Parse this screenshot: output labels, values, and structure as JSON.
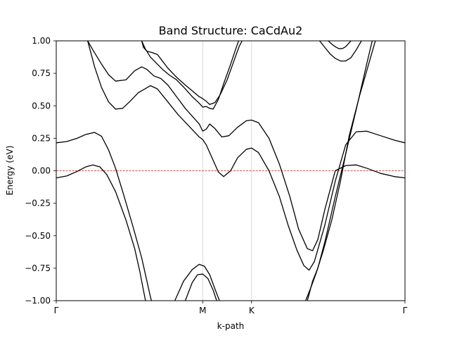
{
  "chart_data": {
    "type": "line",
    "title": "Band Structure: CaCdAu2",
    "xlabel": "k-path",
    "ylabel": "Energy (eV)",
    "xlim": [
      0,
      1
    ],
    "ylim": [
      -1.0,
      1.0
    ],
    "x_ticks": [
      {
        "pos": 0.0,
        "label": "Γ"
      },
      {
        "pos": 0.42,
        "label": "M"
      },
      {
        "pos": 0.56,
        "label": "K"
      },
      {
        "pos": 1.0,
        "label": "Γ"
      }
    ],
    "y_ticks": [
      -1.0,
      -0.75,
      -0.5,
      -0.25,
      0.0,
      0.25,
      0.5,
      0.75,
      1.0
    ],
    "y_tick_labels": [
      "−1.00",
      "−0.75",
      "−0.50",
      "−0.25",
      "0.00",
      "0.25",
      "0.50",
      "0.75",
      "1.00"
    ],
    "vertical_lines_at": [
      0.42,
      0.56
    ],
    "fermi_level": {
      "y": 0.0,
      "color": "#ff0000",
      "style": "dashed"
    },
    "grid": false,
    "line_color": "#000000",
    "series": [
      {
        "points": [
          [
            0.0,
            -0.055
          ],
          [
            0.03,
            -0.04
          ],
          [
            0.06,
            -0.005
          ],
          [
            0.085,
            0.03
          ],
          [
            0.105,
            0.045
          ],
          [
            0.125,
            0.03
          ],
          [
            0.145,
            -0.03
          ],
          [
            0.17,
            -0.16
          ],
          [
            0.2,
            -0.38
          ],
          [
            0.225,
            -0.6
          ],
          [
            0.24,
            -0.78
          ],
          [
            0.25,
            -0.92
          ],
          [
            0.256,
            -1.0
          ]
        ]
      },
      {
        "points": [
          [
            0.0,
            0.215
          ],
          [
            0.03,
            0.225
          ],
          [
            0.06,
            0.25
          ],
          [
            0.085,
            0.28
          ],
          [
            0.11,
            0.295
          ],
          [
            0.13,
            0.265
          ],
          [
            0.15,
            0.16
          ],
          [
            0.17,
            0.02
          ],
          [
            0.195,
            -0.2
          ],
          [
            0.22,
            -0.43
          ],
          [
            0.245,
            -0.67
          ],
          [
            0.26,
            -0.85
          ],
          [
            0.27,
            -0.97
          ],
          [
            0.273,
            -1.0
          ]
        ]
      },
      {
        "points": [
          [
            0.09,
            1.0
          ],
          [
            0.11,
            0.8
          ],
          [
            0.13,
            0.64
          ],
          [
            0.15,
            0.53
          ],
          [
            0.17,
            0.475
          ],
          [
            0.19,
            0.48
          ],
          [
            0.21,
            0.53
          ],
          [
            0.235,
            0.6
          ],
          [
            0.27,
            0.655
          ],
          [
            0.29,
            0.63
          ],
          [
            0.32,
            0.53
          ],
          [
            0.35,
            0.43
          ],
          [
            0.38,
            0.345
          ],
          [
            0.41,
            0.26
          ],
          [
            0.42,
            0.24
          ],
          [
            0.43,
            0.2
          ],
          [
            0.45,
            0.08
          ],
          [
            0.465,
            -0.01
          ],
          [
            0.48,
            -0.045
          ],
          [
            0.5,
            0.0
          ],
          [
            0.52,
            0.1
          ],
          [
            0.545,
            0.165
          ],
          [
            0.56,
            0.175
          ],
          [
            0.58,
            0.14
          ],
          [
            0.61,
            0.0
          ],
          [
            0.64,
            -0.2
          ],
          [
            0.665,
            -0.42
          ],
          [
            0.69,
            -0.61
          ],
          [
            0.71,
            -0.73
          ],
          [
            0.725,
            -0.765
          ],
          [
            0.74,
            -0.7
          ],
          [
            0.77,
            -0.42
          ],
          [
            0.8,
            -0.08
          ],
          [
            0.83,
            0.2
          ],
          [
            0.86,
            0.3
          ],
          [
            0.89,
            0.305
          ],
          [
            0.93,
            0.27
          ],
          [
            0.97,
            0.235
          ],
          [
            1.0,
            0.215
          ]
        ]
      },
      {
        "points": [
          [
            0.09,
            1.0
          ],
          [
            0.105,
            0.93
          ],
          [
            0.13,
            0.82
          ],
          [
            0.15,
            0.74
          ],
          [
            0.17,
            0.69
          ],
          [
            0.2,
            0.7
          ],
          [
            0.225,
            0.77
          ],
          [
            0.245,
            0.8
          ],
          [
            0.26,
            0.78
          ],
          [
            0.28,
            0.73
          ],
          [
            0.3,
            0.71
          ],
          [
            0.32,
            0.66
          ],
          [
            0.345,
            0.57
          ],
          [
            0.37,
            0.48
          ],
          [
            0.39,
            0.42
          ],
          [
            0.41,
            0.36
          ],
          [
            0.42,
            0.305
          ],
          [
            0.43,
            0.32
          ],
          [
            0.44,
            0.36
          ],
          [
            0.455,
            0.325
          ],
          [
            0.475,
            0.26
          ],
          [
            0.495,
            0.27
          ],
          [
            0.52,
            0.335
          ],
          [
            0.545,
            0.385
          ],
          [
            0.56,
            0.39
          ],
          [
            0.58,
            0.37
          ],
          [
            0.61,
            0.25
          ],
          [
            0.64,
            0.05
          ],
          [
            0.67,
            -0.2
          ],
          [
            0.695,
            -0.45
          ],
          [
            0.72,
            -0.6
          ],
          [
            0.735,
            -0.615
          ],
          [
            0.75,
            -0.53
          ],
          [
            0.77,
            -0.3
          ],
          [
            0.8,
            0.0
          ],
          [
            0.83,
            0.04
          ],
          [
            0.86,
            0.045
          ],
          [
            0.89,
            0.02
          ],
          [
            0.93,
            -0.02
          ],
          [
            0.97,
            -0.045
          ],
          [
            1.0,
            -0.055
          ]
        ]
      },
      {
        "points": [
          [
            0.245,
            1.0
          ],
          [
            0.25,
            0.95
          ],
          [
            0.26,
            0.92
          ],
          [
            0.275,
            0.91
          ],
          [
            0.29,
            0.895
          ],
          [
            0.3,
            0.86
          ],
          [
            0.32,
            0.79
          ],
          [
            0.345,
            0.72
          ],
          [
            0.37,
            0.66
          ],
          [
            0.39,
            0.615
          ],
          [
            0.41,
            0.57
          ],
          [
            0.42,
            0.555
          ],
          [
            0.43,
            0.535
          ],
          [
            0.44,
            0.51
          ],
          [
            0.455,
            0.525
          ],
          [
            0.47,
            0.585
          ],
          [
            0.49,
            0.7
          ],
          [
            0.51,
            0.85
          ],
          [
            0.525,
            0.96
          ],
          [
            0.533,
            1.0
          ]
        ]
      },
      {
        "points": [
          [
            0.245,
            1.0
          ],
          [
            0.255,
            0.94
          ],
          [
            0.27,
            0.875
          ],
          [
            0.29,
            0.82
          ],
          [
            0.305,
            0.78
          ],
          [
            0.325,
            0.735
          ],
          [
            0.345,
            0.7
          ],
          [
            0.365,
            0.645
          ],
          [
            0.39,
            0.57
          ],
          [
            0.41,
            0.52
          ],
          [
            0.42,
            0.49
          ],
          [
            0.43,
            0.495
          ],
          [
            0.44,
            0.48
          ],
          [
            0.45,
            0.475
          ],
          [
            0.465,
            0.55
          ],
          [
            0.48,
            0.67
          ],
          [
            0.5,
            0.82
          ],
          [
            0.515,
            0.94
          ],
          [
            0.523,
            1.0
          ]
        ]
      },
      {
        "points": [
          [
            0.37,
            -1.0
          ],
          [
            0.39,
            -0.86
          ],
          [
            0.405,
            -0.8
          ],
          [
            0.42,
            -0.795
          ],
          [
            0.435,
            -0.83
          ],
          [
            0.45,
            -0.92
          ],
          [
            0.46,
            -1.0
          ]
        ]
      },
      {
        "points": [
          [
            0.34,
            -1.0
          ],
          [
            0.365,
            -0.85
          ],
          [
            0.39,
            -0.76
          ],
          [
            0.41,
            -0.72
          ],
          [
            0.425,
            -0.735
          ],
          [
            0.44,
            -0.8
          ],
          [
            0.455,
            -0.91
          ],
          [
            0.468,
            -1.0
          ]
        ]
      },
      {
        "points": [
          [
            0.72,
            -1.0
          ],
          [
            0.735,
            -0.85
          ],
          [
            0.75,
            -0.75
          ],
          [
            0.77,
            -0.55
          ],
          [
            0.8,
            -0.2
          ],
          [
            0.83,
            0.13
          ],
          [
            0.86,
            0.47
          ],
          [
            0.89,
            0.82
          ],
          [
            0.906,
            1.0
          ]
        ]
      },
      {
        "points": [
          [
            0.715,
            -1.0
          ],
          [
            0.73,
            -0.9
          ],
          [
            0.745,
            -0.79
          ],
          [
            0.765,
            -0.62
          ],
          [
            0.79,
            -0.38
          ],
          [
            0.815,
            -0.08
          ],
          [
            0.84,
            0.27
          ],
          [
            0.87,
            0.58
          ],
          [
            0.9,
            0.86
          ],
          [
            0.915,
            1.0
          ]
        ]
      },
      {
        "points": [
          [
            0.755,
            1.0
          ],
          [
            0.77,
            0.95
          ],
          [
            0.785,
            0.9
          ],
          [
            0.8,
            0.865
          ],
          [
            0.815,
            0.845
          ],
          [
            0.83,
            0.845
          ],
          [
            0.845,
            0.87
          ],
          [
            0.86,
            0.93
          ],
          [
            0.875,
            1.0
          ]
        ]
      },
      {
        "points": [
          [
            0.78,
            1.0
          ],
          [
            0.79,
            0.975
          ],
          [
            0.8,
            0.955
          ],
          [
            0.81,
            0.94
          ],
          [
            0.82,
            0.94
          ],
          [
            0.83,
            0.955
          ],
          [
            0.84,
            0.985
          ],
          [
            0.845,
            1.0
          ]
        ]
      }
    ]
  }
}
